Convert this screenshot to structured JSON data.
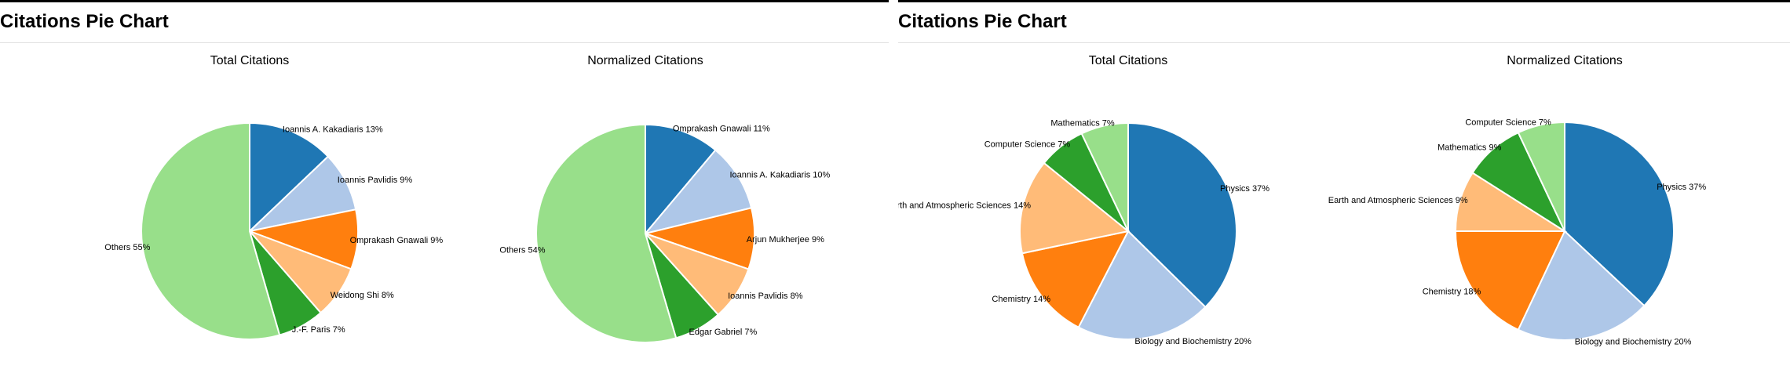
{
  "panels": [
    {
      "title": "Citations Pie Chart"
    },
    {
      "title": "Citations Pie Chart"
    }
  ],
  "chart_data": [
    {
      "type": "pie",
      "title": "Total Citations",
      "labels": [
        "Ioannis A. Kakadiaris",
        "Ioannis Pavlidis",
        "Omprakash Gnawali",
        "Weidong Shi",
        "J.-F. Paris",
        "Others"
      ],
      "values": [
        13,
        9,
        9,
        8,
        7,
        55
      ],
      "colors": [
        "#1f77b4",
        "#aec7e8",
        "#ff7f0e",
        "#ffbb78",
        "#2ca02c",
        "#98df8a"
      ]
    },
    {
      "type": "pie",
      "title": "Normalized Citations",
      "labels": [
        "Omprakash Gnawali",
        "Ioannis A. Kakadiaris",
        "Arjun Mukherjee",
        "Ioannis Pavlidis",
        "Edgar Gabriel",
        "Others"
      ],
      "values": [
        11,
        10,
        9,
        8,
        7,
        54
      ],
      "colors": [
        "#1f77b4",
        "#aec7e8",
        "#ff7f0e",
        "#ffbb78",
        "#2ca02c",
        "#98df8a"
      ]
    },
    {
      "type": "pie",
      "title": "Total Citations",
      "labels": [
        "Physics",
        "Biology and Biochemistry",
        "Chemistry",
        "Earth and Atmospheric Sciences",
        "Computer Science",
        "Mathematics"
      ],
      "values": [
        37,
        20,
        14,
        14,
        7,
        7
      ],
      "colors": [
        "#1f77b4",
        "#aec7e8",
        "#ff7f0e",
        "#ffbb78",
        "#2ca02c",
        "#98df8a"
      ]
    },
    {
      "type": "pie",
      "title": "Normalized Citations",
      "labels": [
        "Physics",
        "Biology and Biochemistry",
        "Chemistry",
        "Earth and Atmospheric Sciences",
        "Mathematics",
        "Computer Science"
      ],
      "values": [
        37,
        20,
        18,
        9,
        9,
        7
      ],
      "colors": [
        "#1f77b4",
        "#aec7e8",
        "#ff7f0e",
        "#ffbb78",
        "#2ca02c",
        "#98df8a"
      ]
    }
  ]
}
